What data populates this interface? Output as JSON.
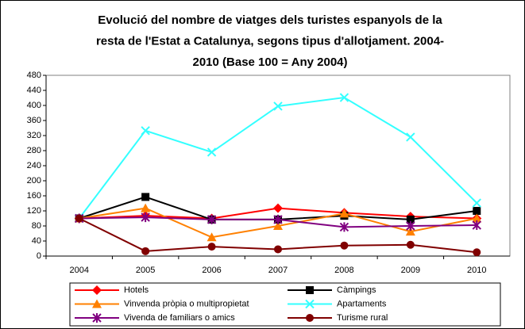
{
  "chart_data": {
    "type": "line",
    "title_lines": [
      "Evolució del nombre de viatges dels turistes espanyols de la",
      "resta de l'Estat a Catalunya, segons tipus d'allotjament. 2004-",
      "2010 (Base 100 = Any 2004)"
    ],
    "categories": [
      "2004",
      "2005",
      "2006",
      "2007",
      "2008",
      "2009",
      "2010"
    ],
    "ylim": [
      0,
      480
    ],
    "yticks": [
      0,
      40,
      80,
      120,
      160,
      200,
      240,
      280,
      320,
      360,
      400,
      440,
      480
    ],
    "grid": false,
    "legend": "bottom",
    "series": [
      {
        "name": "Hotels",
        "color": "#ff0000",
        "marker": "diamond",
        "values": [
          100,
          107,
          100,
          127,
          115,
          105,
          100
        ]
      },
      {
        "name": "Càmpings",
        "color": "#000000",
        "marker": "square",
        "values": [
          100,
          157,
          97,
          97,
          107,
          97,
          120
        ]
      },
      {
        "name": "Vinvenda pròpia o multipropietat",
        "color": "#ff8000",
        "marker": "triangle",
        "values": [
          100,
          127,
          50,
          80,
          113,
          65,
          100
        ]
      },
      {
        "name": "Apartaments",
        "color": "#33ffff",
        "marker": "x",
        "values": [
          100,
          333,
          276,
          398,
          421,
          316,
          141
        ]
      },
      {
        "name": "Vivenda de familiars o amics",
        "color": "#800080",
        "marker": "star",
        "values": [
          100,
          103,
          97,
          97,
          77,
          80,
          82
        ]
      },
      {
        "name": "Turisme rural",
        "color": "#800000",
        "marker": "circle",
        "values": [
          100,
          13,
          25,
          18,
          28,
          30,
          10
        ]
      }
    ]
  }
}
